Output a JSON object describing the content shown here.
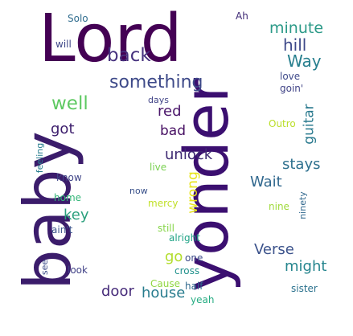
{
  "words": [
    {
      "text": "Lord",
      "color": "#440154"
    },
    {
      "text": "baby",
      "color": "#3b1c6b"
    },
    {
      "text": "yonder",
      "color": "#3b0f70"
    },
    {
      "text": "something",
      "color": "#3e4a89"
    },
    {
      "text": "back",
      "color": "#46327e"
    },
    {
      "text": "minute",
      "color": "#2c9a88"
    },
    {
      "text": "hill",
      "color": "#3e4989"
    },
    {
      "text": "Way",
      "color": "#277f8e"
    },
    {
      "text": "well",
      "color": "#5ec962"
    },
    {
      "text": "red",
      "color": "#4b176b"
    },
    {
      "text": "bad",
      "color": "#471063"
    },
    {
      "text": "got",
      "color": "#3b1c6b"
    },
    {
      "text": "unlock",
      "color": "#3e2a73"
    },
    {
      "text": "stays",
      "color": "#2d708e"
    },
    {
      "text": "guitar",
      "color": "#29798e"
    },
    {
      "text": "wrong",
      "color": "#e8e419"
    },
    {
      "text": "Wait",
      "color": "#31688e"
    },
    {
      "text": "key",
      "color": "#2ba07d"
    },
    {
      "text": "Verse",
      "color": "#3b528b"
    },
    {
      "text": "might",
      "color": "#25858e"
    },
    {
      "text": "go",
      "color": "#b2dd2d"
    },
    {
      "text": "house",
      "color": "#287c8e"
    },
    {
      "text": "door",
      "color": "#472c7a"
    },
    {
      "text": "Solo",
      "color": "#2f6c8e"
    },
    {
      "text": "Ah",
      "color": "#3f2a76"
    },
    {
      "text": "will",
      "color": "#3f4889"
    },
    {
      "text": "love",
      "color": "#3f4a8a"
    },
    {
      "text": "goin'",
      "color": "#414487"
    },
    {
      "text": "Outro",
      "color": "#bade28"
    },
    {
      "text": "days",
      "color": "#414487"
    },
    {
      "text": "feeling",
      "color": "#287d8e"
    },
    {
      "text": "know",
      "color": "#404588"
    },
    {
      "text": "live",
      "color": "#7ad151"
    },
    {
      "text": "home",
      "color": "#34b679"
    },
    {
      "text": "now",
      "color": "#3b528b"
    },
    {
      "text": "mercy",
      "color": "#c0df25"
    },
    {
      "text": "nine",
      "color": "#9fda3a"
    },
    {
      "text": "ninety",
      "color": "#31688e"
    },
    {
      "text": "ain't",
      "color": "#3a538b"
    },
    {
      "text": "still",
      "color": "#86d549"
    },
    {
      "text": "alright",
      "color": "#20a386"
    },
    {
      "text": "one",
      "color": "#3e4c8a"
    },
    {
      "text": "see",
      "color": "#3d4d8a"
    },
    {
      "text": "look",
      "color": "#414287"
    },
    {
      "text": "cross",
      "color": "#21918c"
    },
    {
      "text": "Cause",
      "color": "#90d743"
    },
    {
      "text": "half",
      "color": "#30698e"
    },
    {
      "text": "sister",
      "color": "#2c728e"
    },
    {
      "text": "yeah",
      "color": "#25ac82"
    }
  ]
}
